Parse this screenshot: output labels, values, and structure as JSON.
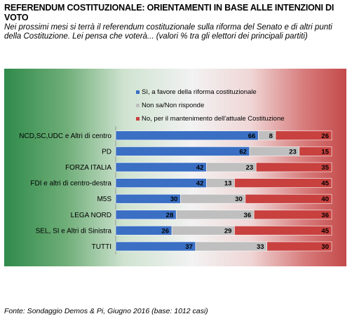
{
  "title": "REFERENDUM COSTITUZIONALE:  ORIENTAMENTI IN BASE ALLE INTENZIONI DI VOTO",
  "subtitle": "Nei prossimi mesi si terrà il referendum costituzionale sulla riforma del Senato e di altri punti della Costituzione. Lei pensa che voterà... (valori % tra gli elettori dei principali partiti)",
  "source": "Fonte: Sondaggio Demos & Pi, Giugno 2016 (base: 1012 casi)",
  "colors": {
    "si": "#3a6fc4",
    "non_sa": "#bfbfbf",
    "no": "#c8413f"
  },
  "chart_data": {
    "type": "bar",
    "orientation": "horizontal",
    "stacked": true,
    "xlim": [
      0,
      100
    ],
    "categories": [
      "NCD,SC,UDC  e  Altri di centro",
      "PD",
      "FORZA ITALIA",
      "FDI e altri di centro-destra",
      "M5S",
      "LEGA NORD",
      "SEL, SI  e Altri di Sinistra",
      "TUTTI"
    ],
    "series": [
      {
        "name": "Sì, a favore della riforma costituzionale",
        "values": [
          66,
          62,
          42,
          42,
          30,
          28,
          26,
          37
        ]
      },
      {
        "name": "Non sa/Non risponde",
        "values": [
          8,
          23,
          23,
          13,
          30,
          36,
          29,
          33
        ]
      },
      {
        "name": "No, per il mantenimento  dell'attuale Costituzione",
        "values": [
          26,
          15,
          35,
          45,
          40,
          36,
          45,
          30
        ]
      }
    ],
    "legend_position": "top-right"
  }
}
